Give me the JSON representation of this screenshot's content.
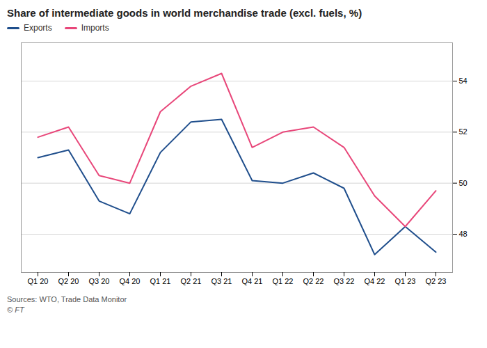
{
  "chart_data": {
    "type": "line",
    "title": "Share of intermediate goods in world merchandise trade (excl. fuels, %)",
    "categories": [
      "Q1 20",
      "Q2 20",
      "Q3 20",
      "Q4 20",
      "Q1 21",
      "Q2 21",
      "Q3 21",
      "Q4 21",
      "Q1 22",
      "Q2 22",
      "Q3 22",
      "Q4 22",
      "Q1 23",
      "Q2 23"
    ],
    "series": [
      {
        "name": "Exports",
        "color": "#1f4e8c",
        "values": [
          51.0,
          51.3,
          49.3,
          48.8,
          51.2,
          52.4,
          52.5,
          50.1,
          50.0,
          50.4,
          49.8,
          47.2,
          48.3,
          47.3
        ]
      },
      {
        "name": "Imports",
        "color": "#e8477a",
        "values": [
          51.8,
          52.2,
          50.3,
          50.0,
          52.8,
          53.8,
          54.3,
          51.4,
          52.0,
          52.2,
          51.4,
          49.5,
          48.3,
          49.7
        ]
      }
    ],
    "ylim": [
      46.5,
      55.5
    ],
    "yticks": [
      48,
      50,
      52,
      54
    ],
    "grid": true,
    "legend": "top",
    "annotations": [
      "Sources: WTO, Trade Data Monitor",
      "© FT"
    ]
  }
}
